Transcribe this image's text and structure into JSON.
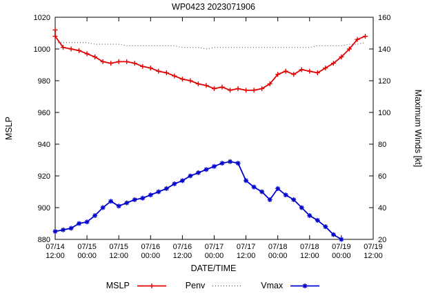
{
  "chart_data": {
    "type": "line",
    "title": "WP0423 2023071906",
    "xlabel": "DATE/TIME",
    "ylabel_left": "MSLP",
    "ylabel_right": "Maximum Winds [kt]",
    "grid": false,
    "legend_position": "bottom-center",
    "x_hours_range": [
      0,
      120
    ],
    "ylim_left": [
      880,
      1020
    ],
    "ylim_right": [
      20,
      160
    ],
    "yticks_left": [
      880,
      900,
      920,
      940,
      960,
      980,
      1000,
      1020
    ],
    "yticks_right": [
      20,
      40,
      60,
      80,
      100,
      120,
      140,
      160
    ],
    "xticks": [
      {
        "hour": 0,
        "date": "07/14",
        "time": "12:00"
      },
      {
        "hour": 12,
        "date": "07/15",
        "time": "00:00"
      },
      {
        "hour": 24,
        "date": "07/15",
        "time": "12:00"
      },
      {
        "hour": 36,
        "date": "07/16",
        "time": "00:00"
      },
      {
        "hour": 48,
        "date": "07/16",
        "time": "12:00"
      },
      {
        "hour": 60,
        "date": "07/17",
        "time": "00:00"
      },
      {
        "hour": 72,
        "date": "07/17",
        "time": "12:00"
      },
      {
        "hour": 84,
        "date": "07/18",
        "time": "00:00"
      },
      {
        "hour": 96,
        "date": "07/18",
        "time": "12:00"
      },
      {
        "hour": 108,
        "date": "07/19",
        "time": "00:00"
      },
      {
        "hour": 120,
        "date": "07/19",
        "time": "12:00"
      }
    ],
    "series": [
      {
        "name": "MSLP",
        "axis": "left",
        "color": "#e00000",
        "style": "solid",
        "marker": "plus",
        "hours": [
          0,
          0,
          3,
          6,
          9,
          12,
          15,
          18,
          21,
          24,
          27,
          30,
          33,
          36,
          39,
          42,
          45,
          48,
          51,
          54,
          57,
          60,
          63,
          66,
          69,
          72,
          75,
          78,
          81,
          84,
          87,
          90,
          93,
          96,
          99,
          102,
          105,
          108,
          111,
          114,
          117
        ],
        "values": [
          1012,
          1008,
          1001,
          1000,
          999,
          997,
          995,
          992,
          991,
          992,
          992,
          991,
          989,
          988,
          986,
          985,
          983,
          981,
          980,
          978,
          977,
          975,
          976,
          974,
          975,
          974,
          974,
          975,
          978,
          984,
          986,
          984,
          987,
          986,
          985,
          988,
          991,
          995,
          1000,
          1006,
          1008
        ]
      },
      {
        "name": "Penv",
        "axis": "left",
        "color": "#404040",
        "style": "dotted",
        "marker": "none",
        "hours": [
          0,
          3,
          6,
          9,
          12,
          15,
          18,
          21,
          24,
          27,
          30,
          33,
          36,
          39,
          42,
          45,
          48,
          51,
          54,
          57,
          60,
          63,
          66,
          69,
          72,
          75,
          78,
          81,
          84,
          87,
          90,
          93,
          96,
          99,
          102,
          105,
          108,
          111,
          114,
          117
        ],
        "values": [
          1004,
          1004,
          1004,
          1004,
          1004,
          1003,
          1003,
          1003,
          1003,
          1002,
          1002,
          1002,
          1002,
          1002,
          1002,
          1002,
          1001,
          1001,
          1001,
          1000,
          1001,
          1001,
          1001,
          1001,
          1001,
          1001,
          1001,
          1001,
          1001,
          1001,
          1001,
          1001,
          1001,
          1002,
          1002,
          1002,
          1002,
          1003,
          1003,
          1004
        ]
      },
      {
        "name": "Vmax",
        "axis": "right",
        "color": "#0000cc",
        "style": "solid",
        "marker": "asterisk",
        "hours": [
          0,
          3,
          6,
          9,
          12,
          15,
          18,
          21,
          24,
          27,
          30,
          33,
          36,
          39,
          42,
          45,
          48,
          51,
          54,
          57,
          60,
          63,
          66,
          69,
          72,
          75,
          78,
          81,
          84,
          87,
          90,
          93,
          96,
          99,
          102,
          105,
          108
        ],
        "values": [
          25,
          26,
          27,
          30,
          31,
          35,
          40,
          44,
          41,
          43,
          45,
          46,
          48,
          50,
          52,
          55,
          57,
          60,
          62,
          64,
          66,
          68,
          69,
          68,
          57,
          53,
          50,
          45,
          52,
          48,
          45,
          40,
          35,
          32,
          28,
          23,
          20
        ]
      }
    ]
  }
}
